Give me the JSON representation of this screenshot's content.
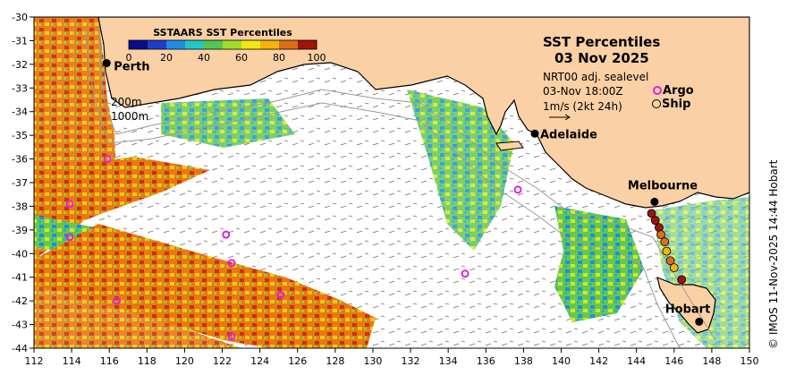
{
  "map": {
    "title": "SST Percentiles",
    "date": "03 Nov 2025",
    "product": "NRT00 adj. sealevel",
    "valid_time": "03-Nov 18:00Z",
    "current_scale": "1m/s (2kt 24h)",
    "argo_label": "Argo",
    "ship_label": "Ship",
    "contour_200": "200m",
    "contour_1000": "1000m",
    "credit": "© IMOS 11-Nov-2025 14:44 Hobart",
    "lon_range": [
      112,
      150
    ],
    "lat_range": [
      -44,
      -30
    ]
  },
  "colorbar": {
    "title": "SSTAARS SST Percentiles",
    "ticks": [
      "0",
      "20",
      "40",
      "60",
      "80",
      "100"
    ],
    "colors": [
      "#0a0a8c",
      "#1e3cc8",
      "#1e8ce6",
      "#1ec8c8",
      "#50c850",
      "#a0dc28",
      "#f0e614",
      "#f5b40a",
      "#dc6e14",
      "#a0140a"
    ]
  },
  "axes": {
    "x_ticks": [
      "112",
      "114",
      "116",
      "118",
      "120",
      "122",
      "124",
      "126",
      "128",
      "130",
      "132",
      "134",
      "136",
      "138",
      "140",
      "142",
      "144",
      "146",
      "148",
      "150"
    ],
    "y_ticks": [
      "-30",
      "-31",
      "-32",
      "-33",
      "-34",
      "-35",
      "-36",
      "-37",
      "-38",
      "-39",
      "-40",
      "-41",
      "-42",
      "-43",
      "-44"
    ]
  },
  "cities": [
    {
      "name": "Perth",
      "lon": 115.86,
      "lat": -31.95
    },
    {
      "name": "Adelaide",
      "lon": 138.6,
      "lat": -34.93
    },
    {
      "name": "Melbourne",
      "lon": 144.96,
      "lat": -37.81
    },
    {
      "name": "Hobart",
      "lon": 147.33,
      "lat": -42.88
    }
  ],
  "argo_floats": [
    {
      "lon": 115.9,
      "lat": -36.0
    },
    {
      "lon": 113.9,
      "lat": -37.9
    },
    {
      "lon": 113.9,
      "lat": -39.3
    },
    {
      "lon": 122.2,
      "lat": -39.2
    },
    {
      "lon": 122.5,
      "lat": -40.4
    },
    {
      "lon": 125.1,
      "lat": -41.75
    },
    {
      "lon": 116.4,
      "lat": -42.0
    },
    {
      "lon": 122.5,
      "lat": -43.5
    },
    {
      "lon": 134.9,
      "lat": -40.85
    },
    {
      "lon": 137.7,
      "lat": -37.3
    }
  ],
  "ship_obs": [
    {
      "lon": 144.8,
      "lat": -38.3,
      "pct": 100
    },
    {
      "lon": 145.0,
      "lat": -38.6,
      "pct": 95
    },
    {
      "lon": 145.2,
      "lat": -38.9,
      "pct": 90
    },
    {
      "lon": 145.3,
      "lat": -39.2,
      "pct": 85
    },
    {
      "lon": 145.5,
      "lat": -39.5,
      "pct": 80
    },
    {
      "lon": 145.6,
      "lat": -39.9,
      "pct": 75
    },
    {
      "lon": 145.8,
      "lat": -40.3,
      "pct": 80
    },
    {
      "lon": 146.0,
      "lat": -40.6,
      "pct": 70
    },
    {
      "lon": 146.4,
      "lat": -41.1,
      "pct": 95
    }
  ]
}
